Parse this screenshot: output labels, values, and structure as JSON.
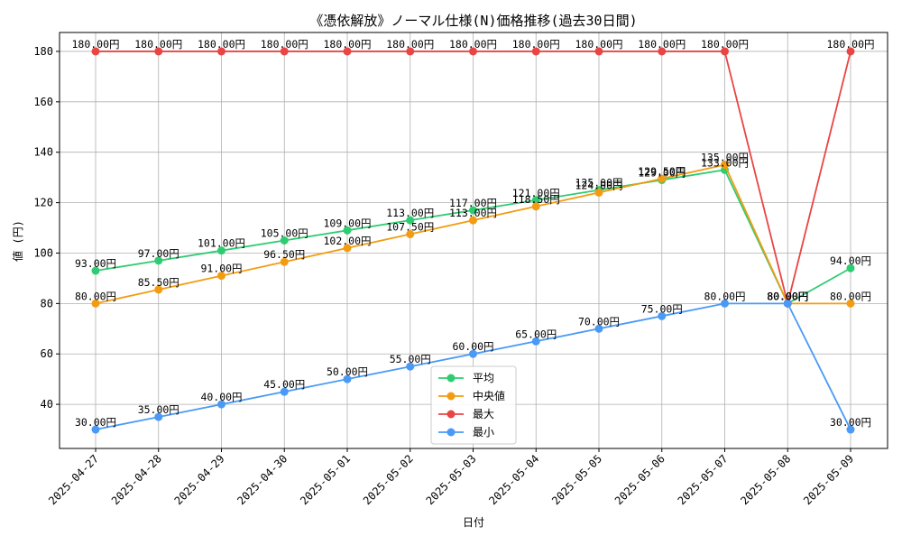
{
  "chart_data": {
    "type": "line",
    "title": "《憑依解放》ノーマル仕様(N)価格推移(過去30日間)",
    "xlabel": "日付",
    "ylabel": "値 (円)",
    "label_suffix": "円",
    "categories": [
      "2025-04-27",
      "2025-04-28",
      "2025-04-29",
      "2025-04-30",
      "2025-05-01",
      "2025-05-02",
      "2025-05-03",
      "2025-05-04",
      "2025-05-05",
      "2025-05-06",
      "2025-05-07",
      "2025-05-08",
      "2025-05-09"
    ],
    "ylim": [
      22.5,
      187.5
    ],
    "yticks": [
      40,
      60,
      80,
      100,
      120,
      140,
      160,
      180
    ],
    "grid": true,
    "legend_position": "lower-center",
    "series": [
      {
        "name": "平均",
        "color": "#2ecc71",
        "values": [
          93,
          97,
          101,
          105,
          109,
          113,
          117,
          121,
          125,
          129,
          133,
          80,
          94
        ]
      },
      {
        "name": "中央値",
        "color": "#f39c12",
        "values": [
          80,
          85.5,
          91,
          96.5,
          102,
          107.5,
          113,
          118.5,
          124,
          129.5,
          135,
          80,
          80
        ]
      },
      {
        "name": "最大",
        "color": "#e84545",
        "values": [
          180,
          180,
          180,
          180,
          180,
          180,
          180,
          180,
          180,
          180,
          180,
          80,
          180
        ]
      },
      {
        "name": "最小",
        "color": "#4a9af5",
        "values": [
          30,
          35,
          40,
          45,
          50,
          55,
          60,
          65,
          70,
          75,
          80,
          80,
          30
        ]
      }
    ]
  }
}
